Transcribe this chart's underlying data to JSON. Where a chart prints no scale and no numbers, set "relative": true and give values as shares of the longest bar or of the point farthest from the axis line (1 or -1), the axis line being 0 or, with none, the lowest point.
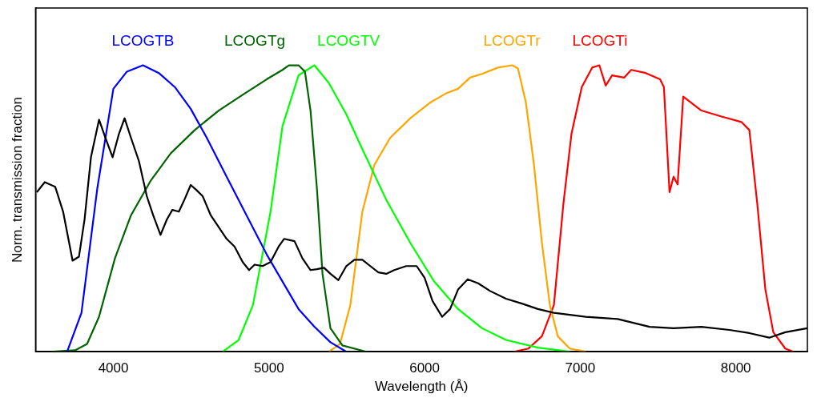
{
  "chart_data": {
    "type": "line",
    "relative": true,
    "xlabel": "Wavelength (Å)",
    "ylabel": "Norm. transmission fraction",
    "xlim": [
      3500,
      8460
    ],
    "xticks": [
      4000,
      5000,
      6000,
      7000,
      8000
    ],
    "grid": false,
    "legend": false,
    "marker": "none",
    "line_style": "solid",
    "series": [
      {
        "color": "#000000",
        "x": [
          3508,
          3559,
          3626,
          3677,
          3738,
          3779,
          3815,
          3856,
          3908,
          3949,
          3995,
          4036,
          4072,
          4113,
          4164,
          4215,
          4256,
          4303,
          4344,
          4379,
          4421,
          4456,
          4497,
          4533,
          4574,
          4626,
          4677,
          4728,
          4779,
          4831,
          4872,
          4908,
          4959,
          5010,
          5062,
          5097,
          5164,
          5215,
          5267,
          5308,
          5354,
          5395,
          5446,
          5497,
          5549,
          5600,
          5651,
          5703,
          5754,
          5805,
          5882,
          5949,
          6000,
          6051,
          6113,
          6164,
          6215,
          6277,
          6344,
          6421,
          6523,
          6626,
          6728,
          6831,
          7036,
          7241,
          7446,
          7600,
          7779,
          7959,
          8087,
          8215,
          8318,
          8460
        ],
        "values": [
          0.557,
          0.592,
          0.576,
          0.489,
          0.318,
          0.332,
          0.462,
          0.679,
          0.81,
          0.747,
          0.679,
          0.761,
          0.815,
          0.747,
          0.666,
          0.543,
          0.476,
          0.408,
          0.462,
          0.495,
          0.489,
          0.53,
          0.582,
          0.565,
          0.543,
          0.476,
          0.435,
          0.394,
          0.367,
          0.313,
          0.285,
          0.304,
          0.299,
          0.313,
          0.367,
          0.394,
          0.386,
          0.326,
          0.285,
          0.288,
          0.293,
          0.272,
          0.25,
          0.299,
          0.321,
          0.321,
          0.299,
          0.277,
          0.272,
          0.285,
          0.299,
          0.299,
          0.258,
          0.177,
          0.122,
          0.149,
          0.217,
          0.253,
          0.239,
          0.212,
          0.185,
          0.168,
          0.149,
          0.136,
          0.122,
          0.114,
          0.087,
          0.082,
          0.087,
          0.076,
          0.065,
          0.049,
          0.068,
          0.082
        ]
      },
      {
        "name": "LCOGTB",
        "color": "#0000ff",
        "x": [
          3703,
          3795,
          3897,
          4000,
          4087,
          4190,
          4292,
          4395,
          4497,
          4600,
          4728,
          4856,
          4985,
          5087,
          5190,
          5292,
          5395,
          5497
        ],
        "values": [
          0,
          0.136,
          0.571,
          0.918,
          0.978,
          1,
          0.973,
          0.924,
          0.848,
          0.747,
          0.611,
          0.476,
          0.34,
          0.245,
          0.149,
          0.087,
          0.033,
          0
        ]
      },
      {
        "name": "LCOGTg",
        "color": "#006400",
        "x": [
          3610,
          3754,
          3831,
          3908,
          4010,
          4113,
          4241,
          4369,
          4523,
          4677,
          4831,
          4985,
          5087,
          5128,
          5190,
          5231,
          5267,
          5308,
          5344,
          5395,
          5472,
          5626
        ],
        "values": [
          0,
          0.005,
          0.027,
          0.122,
          0.326,
          0.476,
          0.598,
          0.693,
          0.774,
          0.842,
          0.897,
          0.951,
          0.984,
          1,
          1,
          0.978,
          0.842,
          0.571,
          0.272,
          0.082,
          0.022,
          0
        ]
      },
      {
        "name": "LCOGTV",
        "color": "#00ff00",
        "x": [
          4703,
          4805,
          4897,
          5010,
          5087,
          5190,
          5292,
          5385,
          5497,
          5600,
          5754,
          5908,
          6062,
          6215,
          6369,
          6523,
          6728,
          6933
        ],
        "values": [
          0,
          0.041,
          0.163,
          0.489,
          0.788,
          0.965,
          1,
          0.938,
          0.829,
          0.707,
          0.53,
          0.38,
          0.245,
          0.149,
          0.082,
          0.041,
          0.014,
          0
        ]
      },
      {
        "name": "LCOGTr",
        "color": "#ffa500",
        "x": [
          5385,
          5456,
          5523,
          5600,
          5677,
          5779,
          5908,
          6036,
          6138,
          6215,
          6292,
          6369,
          6472,
          6564,
          6600,
          6651,
          6703,
          6754,
          6805,
          6856,
          6933,
          7036
        ],
        "values": [
          0,
          0.027,
          0.163,
          0.489,
          0.652,
          0.747,
          0.815,
          0.87,
          0.902,
          0.918,
          0.957,
          0.97,
          0.992,
          1,
          0.989,
          0.87,
          0.652,
          0.38,
          0.163,
          0.054,
          0.011,
          0
        ]
      },
      {
        "name": "LCOGTi",
        "color": "#ff0000",
        "x": [
          6574,
          6667,
          6754,
          6831,
          6892,
          6944,
          7010,
          7077,
          7123,
          7164,
          7205,
          7282,
          7328,
          7421,
          7513,
          7538,
          7574,
          7600,
          7626,
          7662,
          7779,
          7908,
          8036,
          8087,
          8138,
          8190,
          8241,
          8318,
          8369
        ],
        "values": [
          0,
          0.011,
          0.054,
          0.163,
          0.516,
          0.761,
          0.924,
          0.992,
          1,
          0.929,
          0.965,
          0.957,
          0.984,
          0.973,
          0.951,
          0.924,
          0.557,
          0.611,
          0.584,
          0.891,
          0.842,
          0.821,
          0.802,
          0.774,
          0.516,
          0.217,
          0.068,
          0.011,
          0
        ]
      }
    ]
  }
}
